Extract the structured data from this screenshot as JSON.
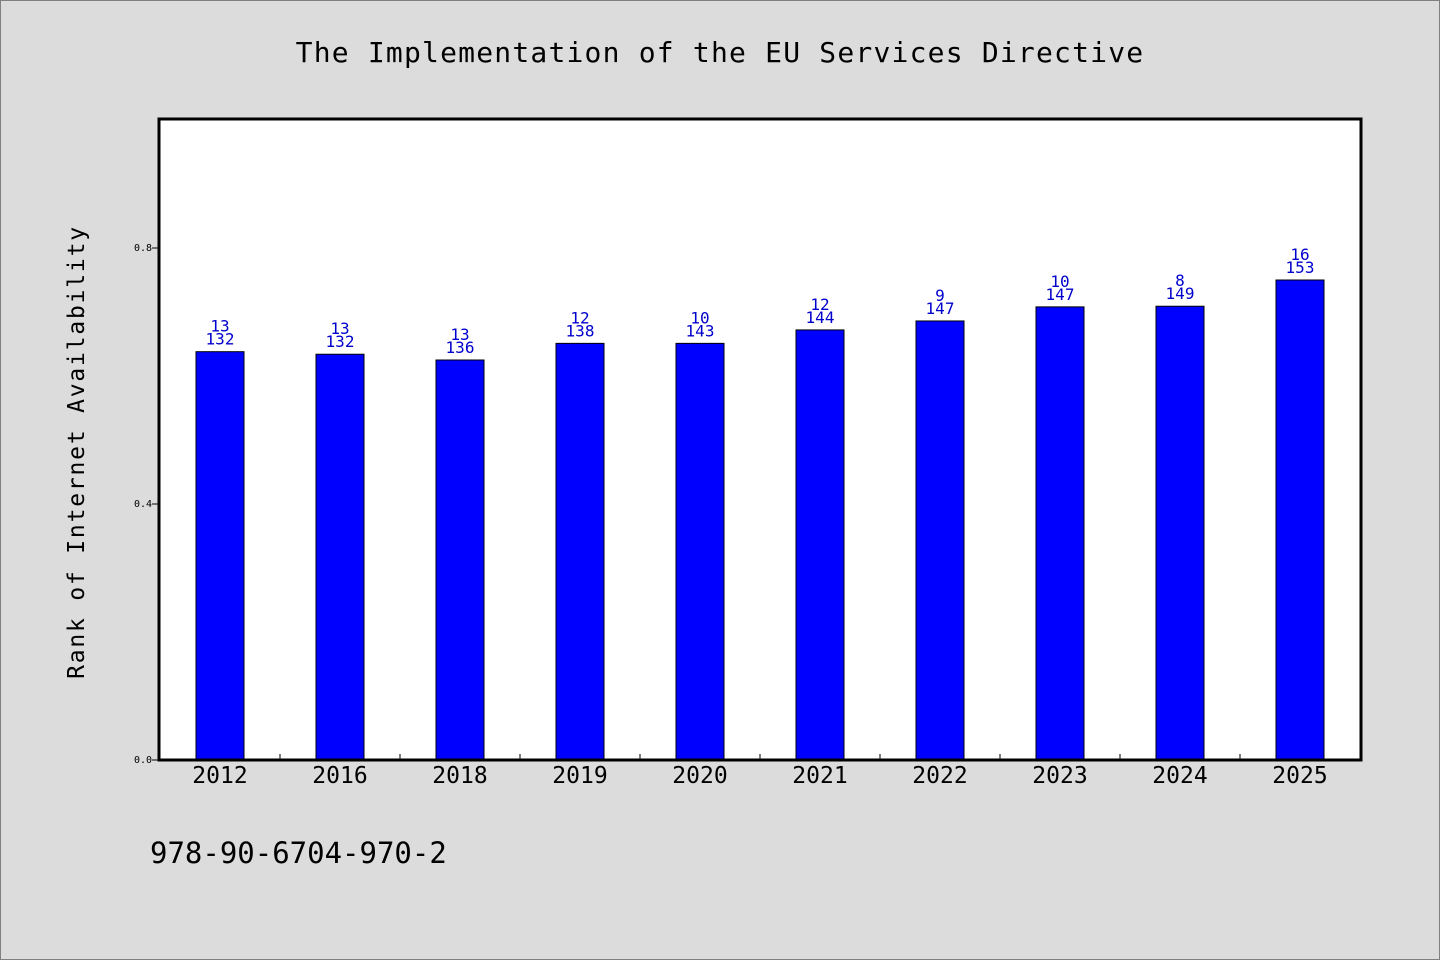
{
  "chart_data": {
    "type": "bar",
    "title": "The Implementation of the EU Services Directive",
    "xlabel": "",
    "ylabel": "Rank of Internet Availability",
    "ylim": [
      0,
      1.0
    ],
    "yticks": [
      "0.0",
      "0.4",
      "0.8"
    ],
    "ytick_values": [
      0.0,
      0.4,
      0.8
    ],
    "categories": [
      "2012",
      "2016",
      "2018",
      "2019",
      "2020",
      "2021",
      "2022",
      "2023",
      "2024",
      "2025"
    ],
    "values": [
      0.638,
      0.634,
      0.625,
      0.651,
      0.651,
      0.672,
      0.686,
      0.708,
      0.709,
      0.75
    ],
    "label_top": [
      "13",
      "13",
      "13",
      "12",
      "10",
      "12",
      "9",
      "10",
      "8",
      "16"
    ],
    "label_bottom": [
      "132",
      "132",
      "136",
      "138",
      "143",
      "144",
      "147",
      "147",
      "149",
      "153"
    ],
    "bar_color": "#0000ff",
    "label_color": "#0000cc",
    "grid": false,
    "legend": "none"
  },
  "footnote": "978-90-6704-970-2"
}
